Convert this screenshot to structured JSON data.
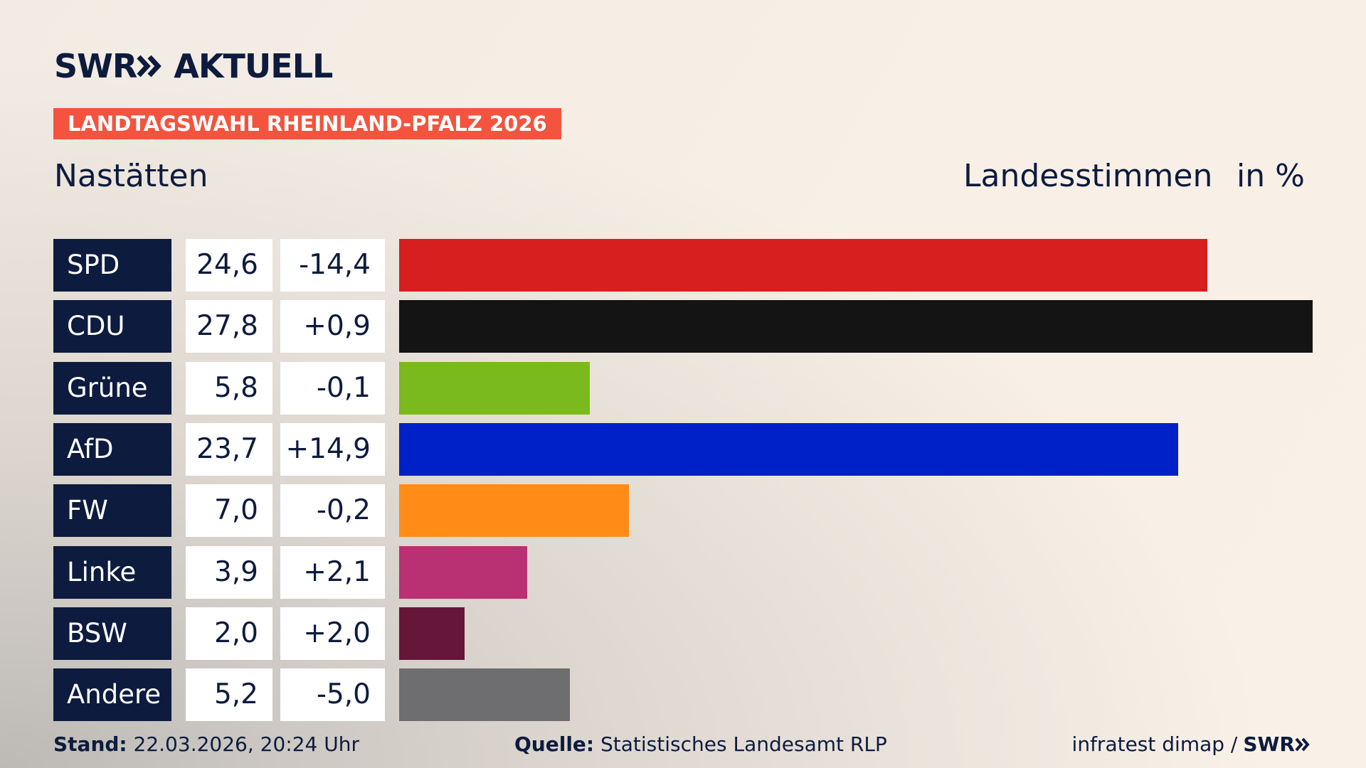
{
  "chart_data": {
    "type": "bar",
    "brand": "SWR",
    "brand_product": "AKTUELL",
    "title": "LANDTAGSWAHL RHEINLAND-PFALZ 2026",
    "subtitle": "Nastätten",
    "value_label": "Landesstimmen",
    "unit_label": "in %",
    "categories": [
      "SPD",
      "CDU",
      "Grüne",
      "AfD",
      "FW",
      "Linke",
      "BSW",
      "Andere"
    ],
    "values": [
      24.6,
      27.8,
      5.8,
      23.7,
      7.0,
      3.9,
      2.0,
      5.2
    ],
    "value_labels": [
      "24,6",
      "27,8",
      "5,8",
      "23,7",
      "7,0",
      "3,9",
      "2,0",
      "5,2"
    ],
    "change_labels": [
      "-14,4",
      "+0,9",
      "-0,1",
      "+14,9",
      "-0,2",
      "+2,1",
      "+2,0",
      "-5,0"
    ],
    "colors": [
      "#d71f1f",
      "#141414",
      "#7aba1c",
      "#0021c8",
      "#ff8c17",
      "#b93073",
      "#66163b",
      "#6e6e70"
    ],
    "footer": {
      "stand_label": "Stand:",
      "stand": "22.03.2026, 20:24 Uhr",
      "source_label": "Quelle:",
      "source": "Statistisches Landesamt RLP",
      "credit": "infratest dimap /",
      "credit_brand": "SWR"
    }
  }
}
